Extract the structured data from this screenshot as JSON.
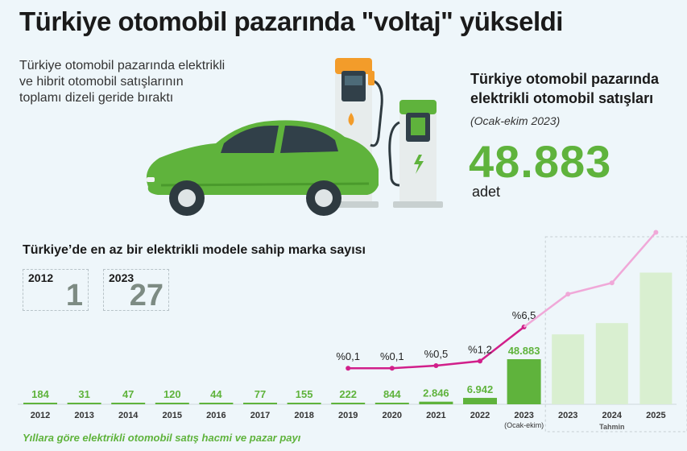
{
  "header": {
    "title": "Türkiye otomobil pazarında \"voltaj\" yükseldi",
    "subtitle": "Türkiye otomobil pazarında elektrikli ve hibrit otomobil satışlarının toplamı dizeli geride bıraktı"
  },
  "stat": {
    "title": "Türkiye otomobil pazarında elektrikli otomobil satışları",
    "period": "(Ocak-ekim 2023)",
    "value": "48.883",
    "unit": "adet"
  },
  "brands": {
    "title": "Türkiye’de en az bir elektrikli modele sahip marka sayısı",
    "items": [
      {
        "year": "2012",
        "value": "1"
      },
      {
        "year": "2023",
        "value": "27"
      }
    ]
  },
  "footer": {
    "caption": "Yıllara göre elektrikli otomobil satış hacmi ve pazar payı"
  },
  "colors": {
    "green": "#5fb33c",
    "forecast_green": "#d9efd0",
    "share_line": "#d11f8a",
    "forecast_line": "#f0a8d8"
  },
  "chart_data": {
    "type": "bar",
    "categories": [
      "2012",
      "2013",
      "2014",
      "2015",
      "2016",
      "2017",
      "2018",
      "2019",
      "2020",
      "2021",
      "2022",
      "2023",
      "2023",
      "2024",
      "2025"
    ],
    "category_notes": [
      "",
      "",
      "",
      "",
      "",
      "",
      "",
      "",
      "",
      "",
      "",
      "(Ocak-ekim)",
      "",
      "",
      ""
    ],
    "forecast_label": "Tahmin",
    "series": [
      {
        "kind": "bar",
        "values": [
          184,
          31,
          47,
          120,
          44,
          77,
          155,
          222,
          844,
          2846,
          6942,
          48883,
          null,
          null,
          null
        ],
        "labels": [
          "184",
          "31",
          "47",
          "120",
          "44",
          "77",
          "155",
          "222",
          "844",
          "2.846",
          "6.942",
          "48.883",
          "",
          "",
          ""
        ],
        "forecast_relative_height": [
          null,
          null,
          null,
          null,
          null,
          null,
          null,
          null,
          null,
          null,
          null,
          null,
          1.55,
          1.8,
          2.92
        ]
      },
      {
        "kind": "line",
        "unit": "%",
        "values": [
          null,
          null,
          null,
          null,
          null,
          null,
          null,
          0.1,
          0.1,
          0.5,
          1.2,
          6.5,
          null,
          null,
          null
        ],
        "labels": [
          "",
          "",
          "",
          "",
          "",
          "",
          "",
          "%0,1",
          "%0,1",
          "%0,5",
          "%1,2",
          "%6,5",
          "",
          "",
          ""
        ]
      }
    ]
  }
}
